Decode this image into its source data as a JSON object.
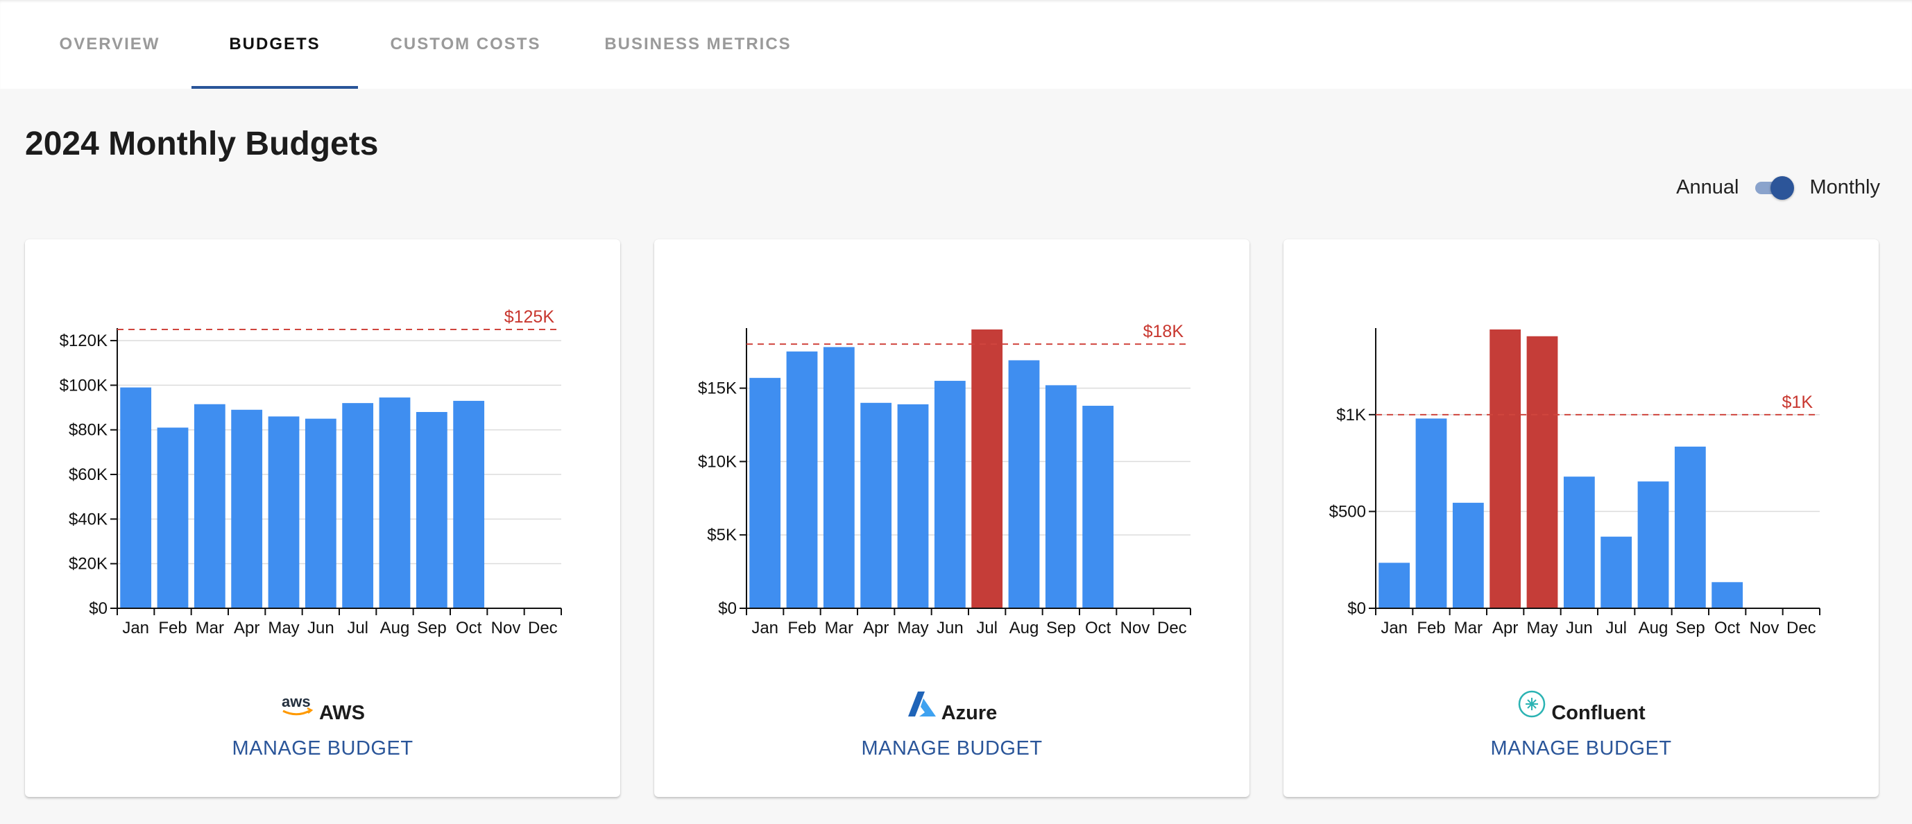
{
  "tabs": [
    {
      "id": "overview",
      "label": "OVERVIEW",
      "active": false
    },
    {
      "id": "budgets",
      "label": "BUDGETS",
      "active": true
    },
    {
      "id": "custom",
      "label": "CUSTOM COSTS",
      "active": false
    },
    {
      "id": "business",
      "label": "BUSINESS METRICS",
      "active": false
    }
  ],
  "page": {
    "title": "2024 Monthly Budgets"
  },
  "toggle": {
    "left_label": "Annual",
    "right_label": "Monthly",
    "selected": "Monthly"
  },
  "colors": {
    "bar": "#3f8ef0",
    "over_budget": "#c53d38",
    "budget_line": "#d0453e",
    "accent": "#2a5599"
  },
  "cards": [
    {
      "provider": "AWS",
      "logo_icon": "aws-logo-icon",
      "logo_text": "aws",
      "action": "MANAGE BUDGET"
    },
    {
      "provider": "Azure",
      "logo_icon": "azure-logo-icon",
      "action": "MANAGE BUDGET"
    },
    {
      "provider": "Confluent",
      "logo_icon": "confluent-logo-icon",
      "action": "MANAGE BUDGET"
    }
  ],
  "chart_data": [
    {
      "type": "bar",
      "categories": [
        "Jan",
        "Feb",
        "Mar",
        "Apr",
        "May",
        "Jun",
        "Jul",
        "Aug",
        "Sep",
        "Oct",
        "Nov",
        "Dec"
      ],
      "values": [
        99000,
        81000,
        91500,
        89000,
        86000,
        85000,
        92000,
        94500,
        88000,
        93000,
        null,
        null
      ],
      "budget": 125000,
      "budget_label": "$125K",
      "ylim": [
        0,
        125000
      ],
      "yticks": [
        0,
        20000,
        40000,
        60000,
        80000,
        100000,
        120000
      ],
      "ytick_labels": [
        "$0",
        "$20K",
        "$40K",
        "$60K",
        "$80K",
        "$100K",
        "$120K"
      ],
      "grid": true
    },
    {
      "type": "bar",
      "categories": [
        "Jan",
        "Feb",
        "Mar",
        "Apr",
        "May",
        "Jun",
        "Jul",
        "Aug",
        "Sep",
        "Oct",
        "Nov",
        "Dec"
      ],
      "values": [
        15700,
        17500,
        17800,
        14000,
        13900,
        15500,
        19000,
        16900,
        15200,
        13800,
        null,
        null
      ],
      "budget": 18000,
      "budget_label": "$18K",
      "ylim": [
        0,
        19000
      ],
      "yticks": [
        0,
        5000,
        10000,
        15000
      ],
      "ytick_labels": [
        "$0",
        "$5K",
        "$10K",
        "$15K"
      ],
      "grid": true
    },
    {
      "type": "bar",
      "categories": [
        "Jan",
        "Feb",
        "Mar",
        "Apr",
        "May",
        "Jun",
        "Jul",
        "Aug",
        "Sep",
        "Oct",
        "Nov",
        "Dec"
      ],
      "values": [
        235,
        980,
        545,
        1440,
        1405,
        680,
        370,
        655,
        835,
        135,
        null,
        null
      ],
      "budget": 1000,
      "budget_label": "$1K",
      "ylim": [
        0,
        1440
      ],
      "yticks": [
        0,
        500,
        1000
      ],
      "ytick_labels": [
        "$0",
        "$500",
        "$1K"
      ],
      "grid": true
    }
  ]
}
